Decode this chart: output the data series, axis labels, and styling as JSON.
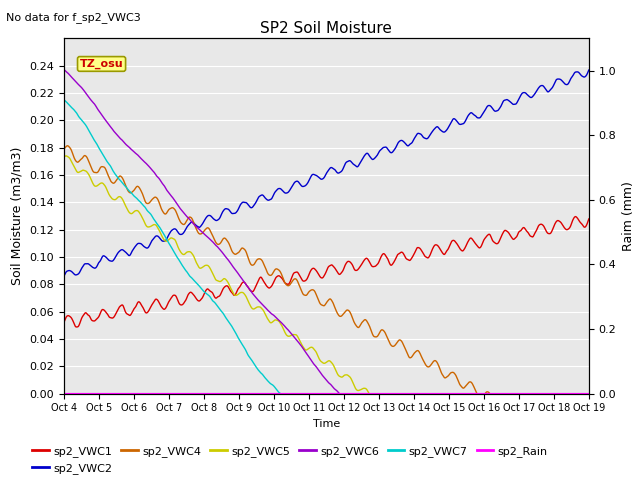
{
  "title": "SP2 Soil Moisture",
  "no_data_text": "No data for f_sp2_VWC3",
  "xlabel": "Time",
  "ylabel_left": "Soil Moisture (m3/m3)",
  "ylabel_right": "Raim (mm)",
  "ylim_left": [
    0.0,
    0.26
  ],
  "ylim_right": [
    0.0,
    1.1
  ],
  "yticks_left": [
    0.0,
    0.02,
    0.04,
    0.06,
    0.08,
    0.1,
    0.12,
    0.14,
    0.16,
    0.18,
    0.2,
    0.22,
    0.24
  ],
  "yticks_right": [
    0.0,
    0.2,
    0.4,
    0.6,
    0.8,
    1.0
  ],
  "background_color": "#e8e8e8",
  "series": {
    "sp2_VWC1": {
      "color": "#dd0000",
      "base": 0.052,
      "amp": 0.004,
      "freq": 2.0,
      "trend": 5e-05,
      "noise": 0.0015
    },
    "sp2_VWC2": {
      "color": "#0000cc",
      "base": 0.086,
      "amp": 0.003,
      "freq": 2.0,
      "trend": 0.0001,
      "noise": 0.001
    },
    "sp2_VWC4": {
      "color": "#cc6600",
      "base": 0.179,
      "amp": 0.004,
      "freq": 2.0,
      "trend": -0.00015,
      "noise": 0.001
    },
    "sp2_VWC5": {
      "color": "#cccc00",
      "base": 0.173,
      "amp": 0.003,
      "freq": 2.0,
      "trend": -0.0002,
      "noise": 0.0008
    },
    "sp2_VWC6": {
      "color": "#9900cc",
      "base": 0.237,
      "amp": 0.002,
      "freq": 0.5,
      "trend": -0.0003,
      "noise": 0.0005
    },
    "sp2_VWC7": {
      "color": "#00cccc",
      "base": 0.215,
      "amp": 0.003,
      "freq": 0.5,
      "trend": -0.00035,
      "noise": 0.0007
    },
    "sp2_Rain": {
      "color": "#ff00ff",
      "base": 0.0,
      "amp": 0.0,
      "freq": 0.0,
      "trend": 0.0,
      "noise": 0.0
    }
  },
  "legend_order": [
    "sp2_VWC1",
    "sp2_VWC2",
    "sp2_VWC4",
    "sp2_VWC5",
    "sp2_VWC6",
    "sp2_VWC7",
    "sp2_Rain"
  ],
  "tz_label": "TZ_osu",
  "tz_box_color": "#ffff88",
  "tz_text_color": "#cc0000",
  "grid_color": "#ffffff",
  "tick_labels": [
    "Oct 4",
    "Oct 5",
    "Oct 6",
    "Oct 7",
    "Oct 8",
    "Oct 9",
    "Oct 10",
    "Oct 11",
    "Oct 12",
    "Oct 13",
    "Oct 14",
    "Oct 15",
    "Oct 16",
    "Oct 17",
    "Oct 18",
    "Oct 19"
  ]
}
